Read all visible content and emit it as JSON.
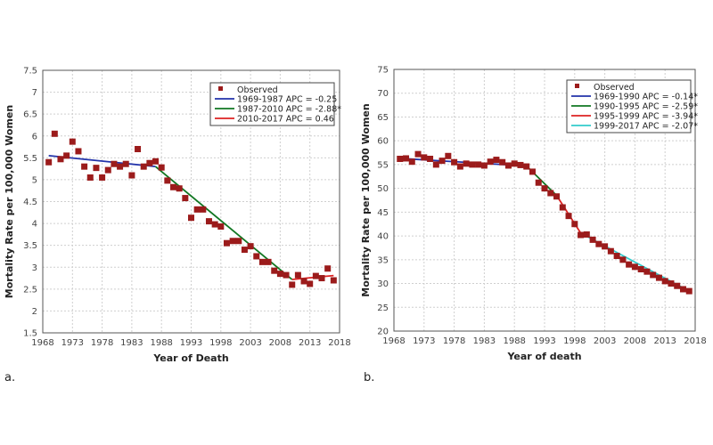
{
  "chart_data": [
    {
      "type": "scatter",
      "panel_label": "a.",
      "xlabel": "Year of Death",
      "ylabel": "Mortality Rate per 100,000 Women",
      "xlim": [
        1968,
        2018
      ],
      "ylim": [
        1.5,
        7.5
      ],
      "xticks": [
        1968,
        1973,
        1978,
        1983,
        1988,
        1993,
        1998,
        2003,
        2008,
        2013,
        2018
      ],
      "yticks": [
        1.5,
        2,
        2.5,
        3,
        3.5,
        4,
        4.5,
        5,
        5.5,
        6,
        6.5,
        7,
        7.5
      ],
      "grid": true,
      "legend_position": "top-right",
      "observed": {
        "name": "Observed",
        "color": "#9b1b1b",
        "x": [
          1969,
          1970,
          1971,
          1972,
          1973,
          1974,
          1975,
          1976,
          1977,
          1978,
          1979,
          1980,
          1981,
          1982,
          1983,
          1984,
          1985,
          1986,
          1987,
          1988,
          1989,
          1990,
          1991,
          1992,
          1993,
          1994,
          1995,
          1996,
          1997,
          1998,
          1999,
          2000,
          2001,
          2002,
          2003,
          2004,
          2005,
          2006,
          2007,
          2008,
          2009,
          2010,
          2011,
          2012,
          2013,
          2014,
          2015,
          2016,
          2017
        ],
        "y": [
          5.4,
          6.05,
          5.47,
          5.55,
          5.87,
          5.65,
          5.3,
          5.05,
          5.27,
          5.05,
          5.22,
          5.36,
          5.3,
          5.36,
          5.1,
          5.7,
          5.3,
          5.38,
          5.42,
          5.28,
          4.98,
          4.83,
          4.8,
          4.58,
          4.13,
          4.32,
          4.32,
          4.05,
          3.98,
          3.93,
          3.55,
          3.6,
          3.6,
          3.4,
          3.48,
          3.25,
          3.12,
          3.12,
          2.92,
          2.85,
          2.82,
          2.6,
          2.82,
          2.68,
          2.62,
          2.8,
          2.75,
          2.97,
          2.7
        ]
      },
      "series": [
        {
          "name": "1969-1987 APC  = -0.25",
          "color": "#2233aa",
          "x": [
            1969,
            1987
          ],
          "y": [
            5.55,
            5.3
          ]
        },
        {
          "name": "1987-2010 APC  = -2.88*",
          "color": "#117722",
          "x": [
            1987,
            2010
          ],
          "y": [
            5.3,
            2.72
          ]
        },
        {
          "name": "2010-2017 APC  =  0.46",
          "color": "#dd2222",
          "x": [
            2010,
            2017
          ],
          "y": [
            2.72,
            2.81
          ]
        }
      ]
    },
    {
      "type": "scatter",
      "panel_label": "b.",
      "xlabel": "Year of death",
      "ylabel": "Mortality Rate per 100,000 Women",
      "xlim": [
        1968,
        2018
      ],
      "ylim": [
        20,
        75
      ],
      "xticks": [
        1968,
        1973,
        1978,
        1983,
        1988,
        1993,
        1998,
        2003,
        2008,
        2013,
        2018
      ],
      "yticks": [
        20,
        25,
        30,
        35,
        40,
        45,
        50,
        55,
        60,
        65,
        70,
        75
      ],
      "grid": true,
      "legend_position": "top-right",
      "observed": {
        "name": "Observed",
        "color": "#9b1b1b",
        "x": [
          1969,
          1970,
          1971,
          1972,
          1973,
          1974,
          1975,
          1976,
          1977,
          1978,
          1979,
          1980,
          1981,
          1982,
          1983,
          1984,
          1985,
          1986,
          1987,
          1988,
          1989,
          1990,
          1991,
          1992,
          1993,
          1994,
          1995,
          1996,
          1997,
          1998,
          1999,
          2000,
          2001,
          2002,
          2003,
          2004,
          2005,
          2006,
          2007,
          2008,
          2009,
          2010,
          2011,
          2012,
          2013,
          2014,
          2015,
          2016,
          2017
        ],
        "y": [
          56.2,
          56.3,
          55.6,
          57.2,
          56.5,
          56.2,
          55.0,
          55.8,
          56.8,
          55.5,
          54.6,
          55.2,
          55.0,
          55.0,
          54.8,
          55.6,
          56.0,
          55.5,
          54.8,
          55.2,
          54.9,
          54.6,
          53.5,
          51.2,
          50.0,
          49.0,
          48.3,
          46.0,
          44.2,
          42.5,
          40.2,
          40.3,
          39.2,
          38.3,
          37.8,
          36.8,
          35.8,
          35.0,
          34.0,
          33.5,
          33.0,
          32.5,
          31.8,
          31.2,
          30.5,
          30.0,
          29.5,
          28.8,
          28.4
        ]
      },
      "series": [
        {
          "name": "1969-1990 APC  = -0.14*",
          "color": "#2233aa",
          "x": [
            1969,
            1990
          ],
          "y": [
            56.3,
            54.7
          ]
        },
        {
          "name": "1990-1995 APC  = -2.59*",
          "color": "#117722",
          "x": [
            1990,
            1995
          ],
          "y": [
            54.7,
            48.5
          ]
        },
        {
          "name": "1995-1999 APC  = -3.94*",
          "color": "#dd2222",
          "x": [
            1995,
            1999
          ],
          "y": [
            48.5,
            40.6
          ]
        },
        {
          "name": "1999-2017 APC  = -2.07*",
          "color": "#33cccc",
          "x": [
            1999,
            2017
          ],
          "y": [
            40.6,
            28.4
          ]
        }
      ]
    }
  ]
}
